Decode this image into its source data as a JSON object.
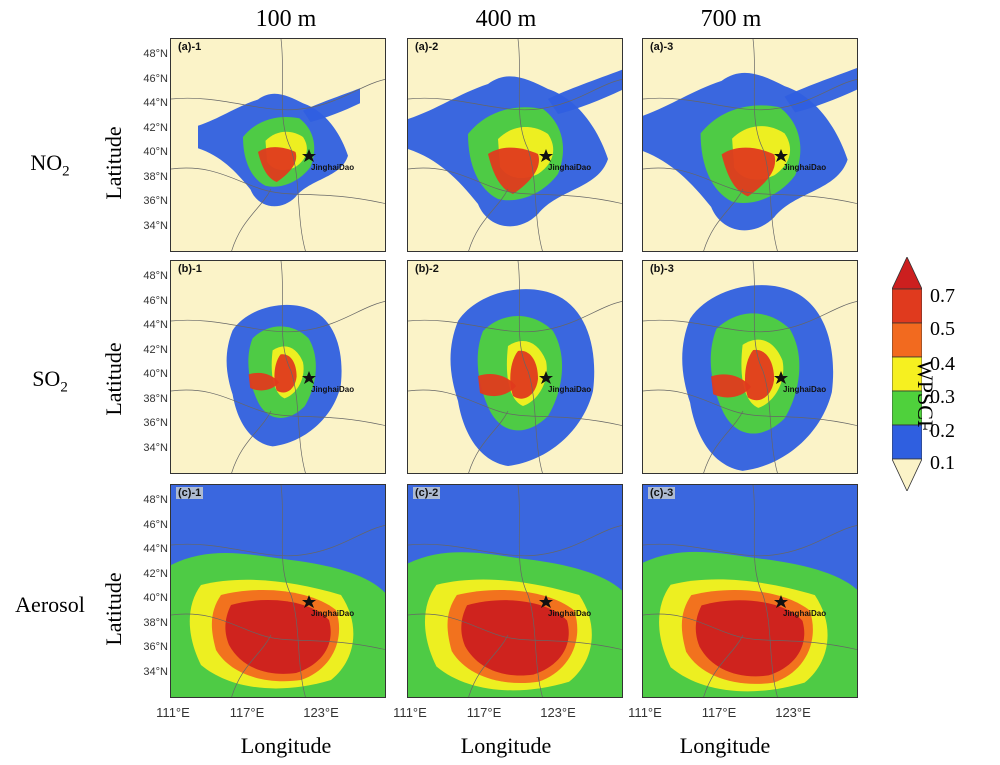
{
  "figure": {
    "columns": [
      {
        "id": "col-100",
        "label": "100 m"
      },
      {
        "id": "col-400",
        "label": "400 m"
      },
      {
        "id": "col-700",
        "label": "700 m"
      }
    ],
    "rows": [
      {
        "id": "row-no2",
        "species": "NO",
        "subscript": "2",
        "ylabel": "Latitude"
      },
      {
        "id": "row-so2",
        "species": "SO",
        "subscript": "2",
        "ylabel": "Latitude"
      },
      {
        "id": "row-aerosol",
        "species": "Aerosol",
        "subscript": "",
        "ylabel": "Latitude"
      }
    ],
    "panel_ids": [
      [
        "(a)-1",
        "(a)-2",
        "(a)-3"
      ],
      [
        "(b)-1",
        "(b)-2",
        "(b)-3"
      ],
      [
        "(c)-1",
        "(c)-2",
        "(c)-3"
      ]
    ],
    "site_label": "JinghaiDao",
    "lat_ticks": [
      "48°N",
      "46°N",
      "44°N",
      "42°N",
      "40°N",
      "38°N",
      "36°N",
      "34°N"
    ],
    "lon_ticks": [
      "111°E",
      "117°E",
      "123°E"
    ],
    "xlabel": "Longitude",
    "colorbar": {
      "title": "WPSCF",
      "levels": [
        "0.7",
        "0.5",
        "0.4",
        "0.3",
        "0.2",
        "0.1"
      ],
      "colors": {
        "above_0_7": "#cc1f1f",
        "0_5_to_0_7": "#e03a1e",
        "0_4_to_0_5": "#f26a1f",
        "0_3_to_0_4": "#f6f020",
        "0_2_to_0_3": "#4fd13c",
        "0_1_to_0_2": "#2f5fe0",
        "below_0_1": "#fbf3c8"
      }
    }
  }
}
